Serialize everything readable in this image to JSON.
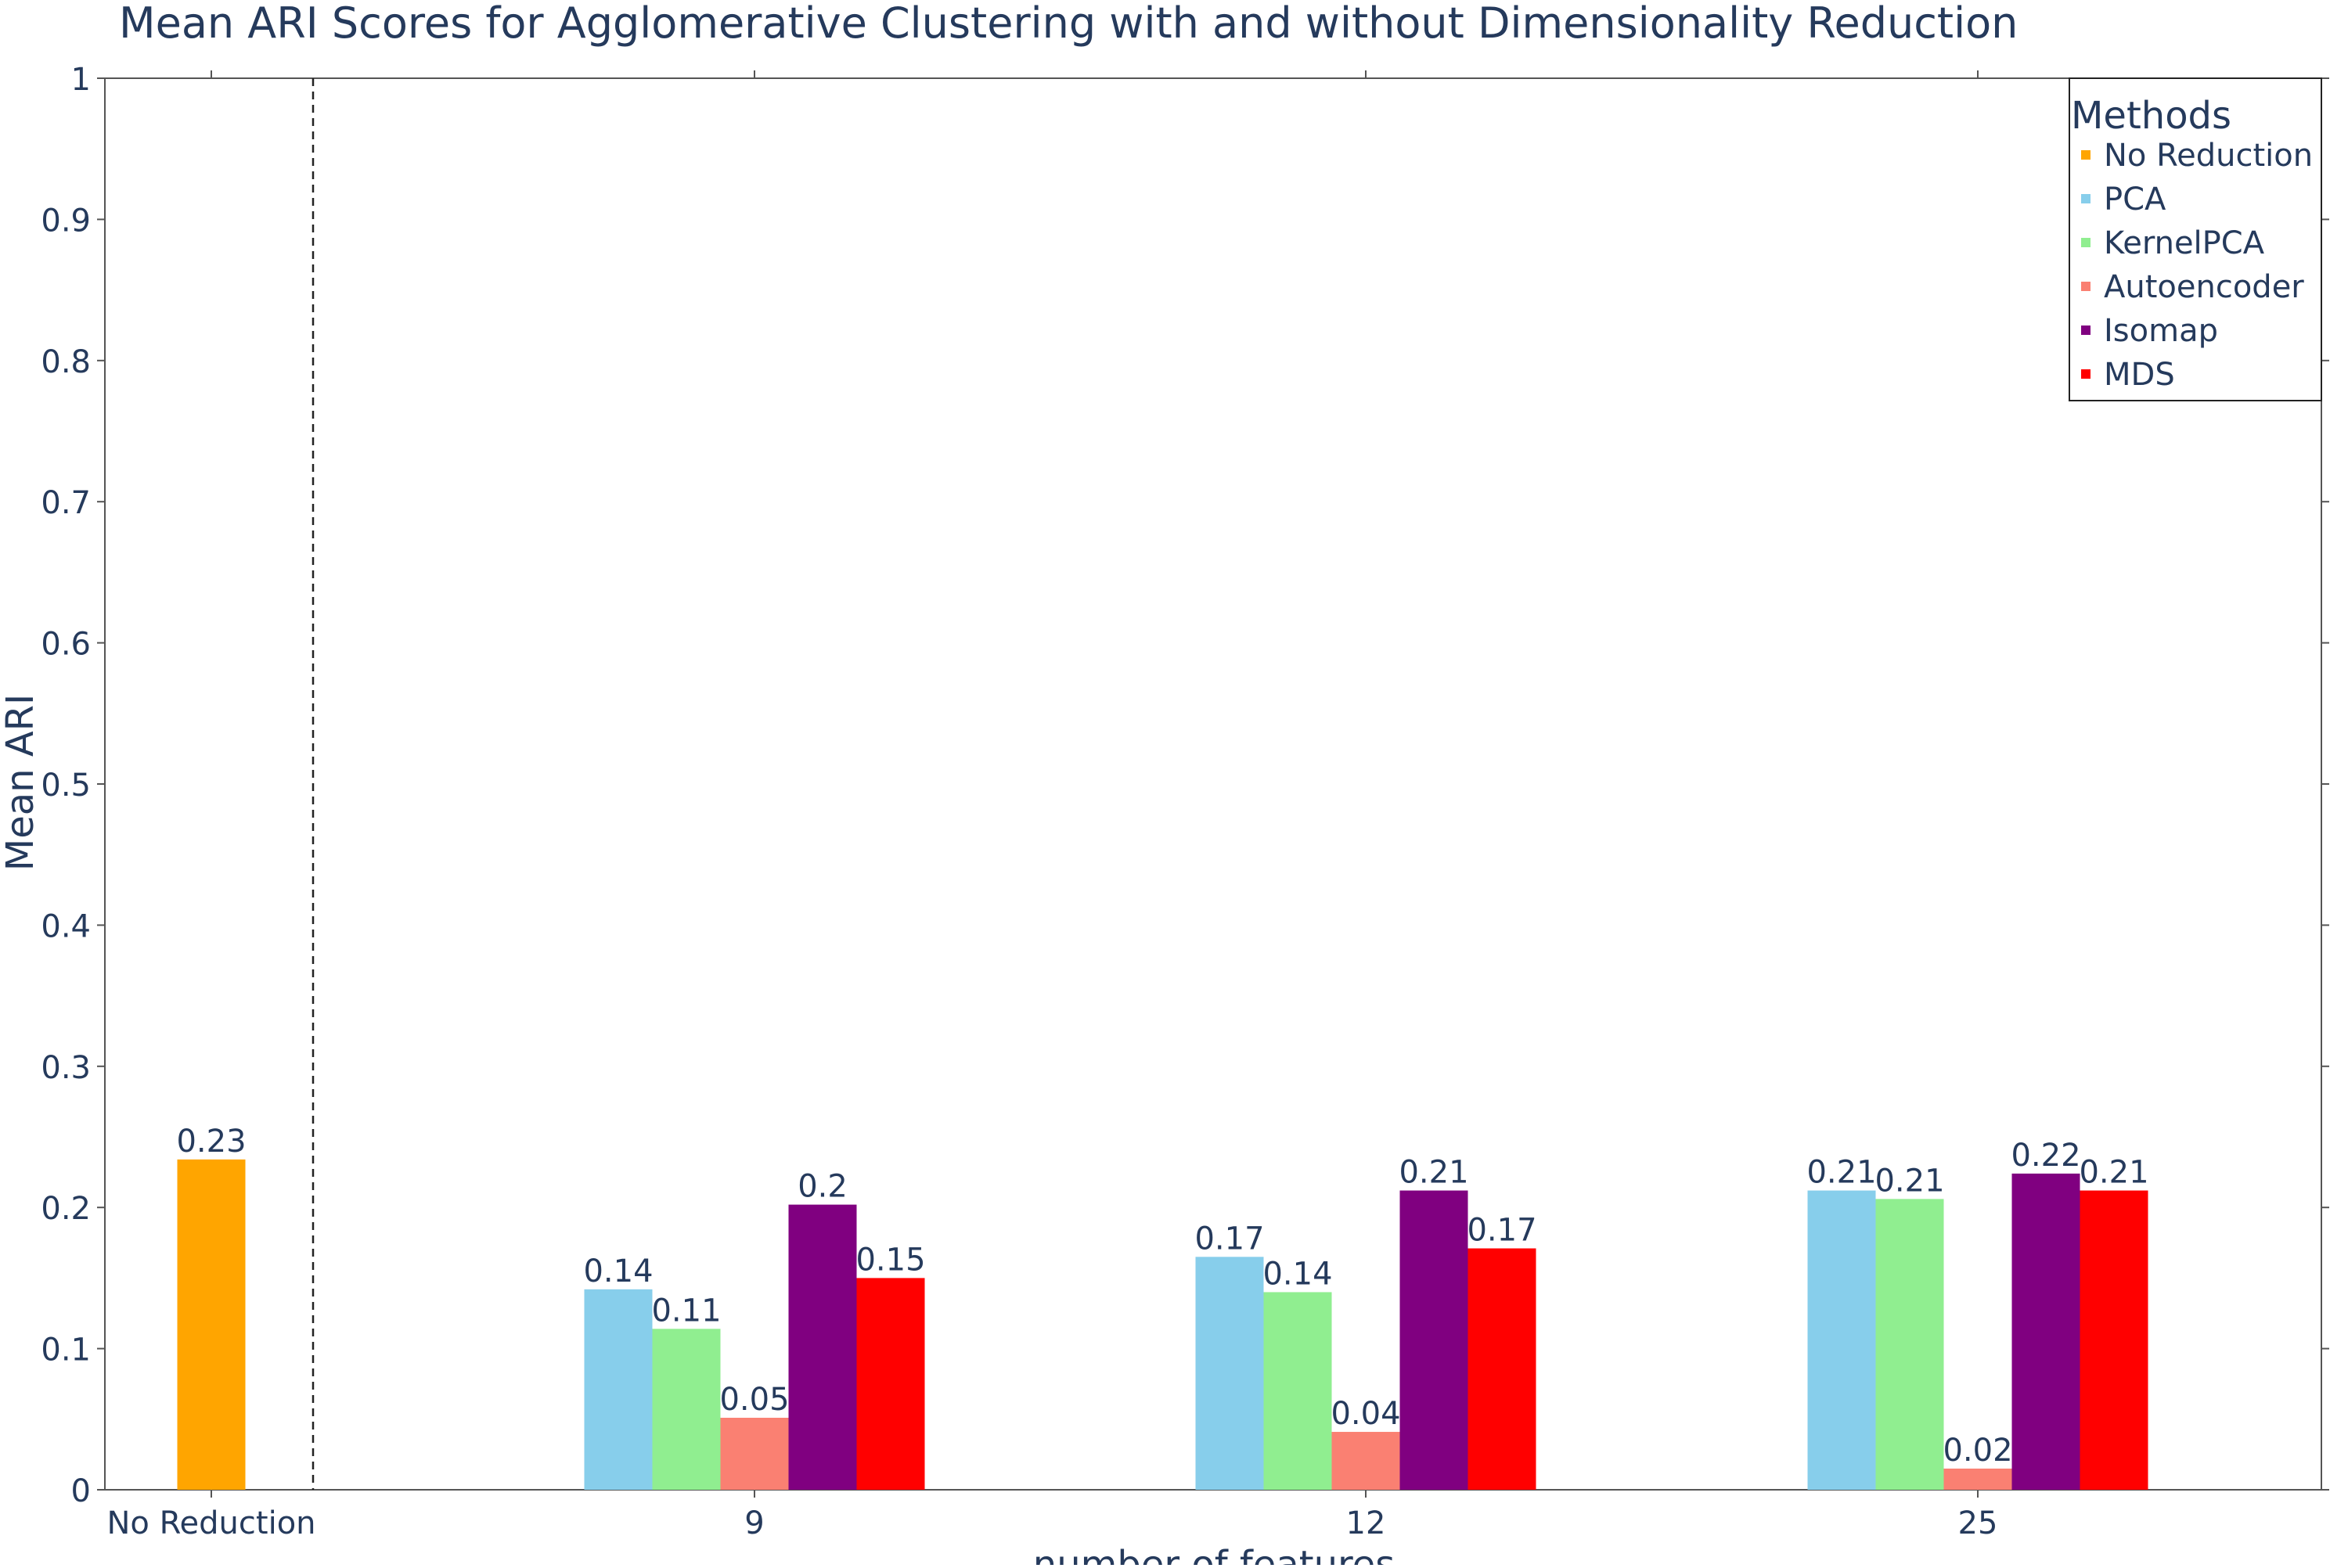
{
  "chart_data": {
    "type": "bar",
    "title": "Mean ARI Scores for Agglomerative Clustering with and without Dimensionality Reduction",
    "xlabel": "number of features",
    "ylabel": "Mean ARI",
    "ylim": [
      0,
      1
    ],
    "yticks": [
      "0",
      "0.1",
      "0.2",
      "0.3",
      "0.4",
      "0.5",
      "0.6",
      "0.7",
      "0.8",
      "0.9",
      "1"
    ],
    "categories": [
      "No Reduction",
      "9",
      "12",
      "25"
    ],
    "separator_line": "dashed vertical line between No Reduction and 9",
    "grid": false,
    "legend": {
      "title": "Methods",
      "placement": "top-right"
    },
    "series": [
      {
        "name": "No Reduction",
        "color": "#ffa500",
        "values": [
          0.234,
          null,
          null,
          null
        ],
        "labels": [
          "0.23",
          null,
          null,
          null
        ]
      },
      {
        "name": "PCA",
        "color": "#87ceeb",
        "values": [
          null,
          0.142,
          0.165,
          0.212
        ],
        "labels": [
          null,
          "0.14",
          "0.17",
          "0.21"
        ]
      },
      {
        "name": "KernelPCA",
        "color": "#90ee90",
        "values": [
          null,
          0.114,
          0.14,
          0.206
        ],
        "labels": [
          null,
          "0.11",
          "0.14",
          "0.21"
        ]
      },
      {
        "name": "Autoencoder",
        "color": "#fa8072",
        "values": [
          null,
          0.051,
          0.041,
          0.015
        ],
        "labels": [
          null,
          "0.05",
          "0.04",
          "0.02"
        ]
      },
      {
        "name": "Isomap",
        "color": "#800080",
        "values": [
          null,
          0.202,
          0.212,
          0.224
        ],
        "labels": [
          null,
          "0.2",
          "0.21",
          "0.22"
        ]
      },
      {
        "name": "MDS",
        "color": "#ff0000",
        "values": [
          null,
          0.15,
          0.171,
          0.212
        ],
        "labels": [
          null,
          "0.15",
          "0.17",
          "0.21"
        ]
      }
    ]
  }
}
